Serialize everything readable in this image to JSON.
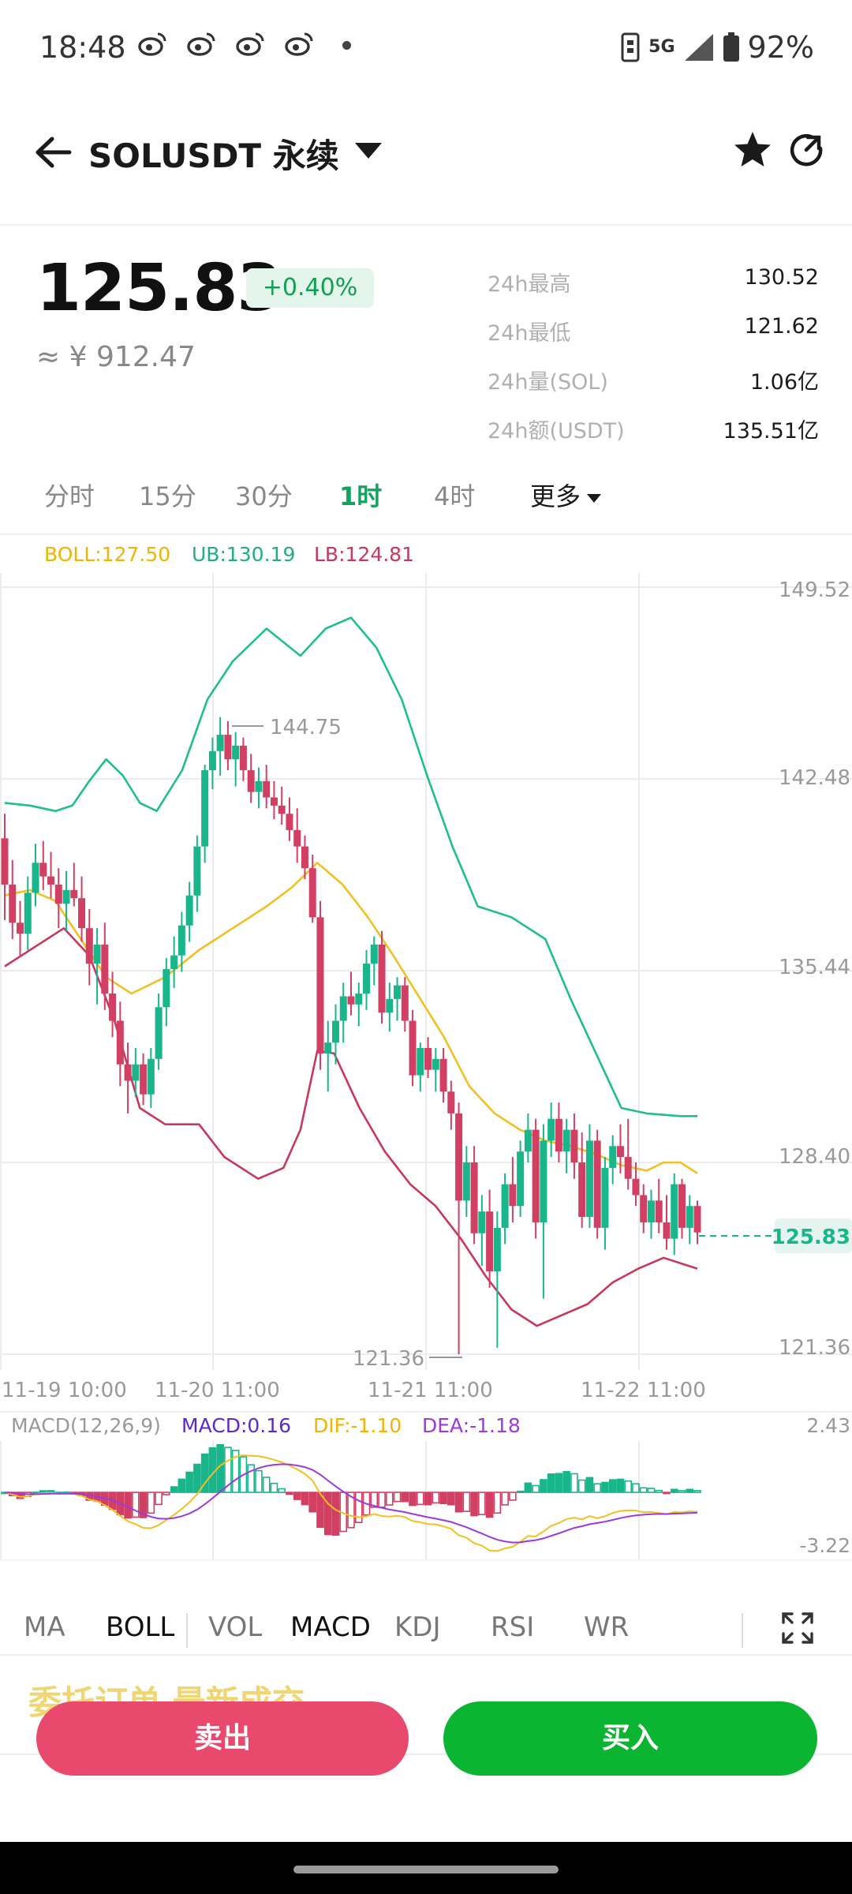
{
  "status_bar": {
    "time": "18:48",
    "network": "5G",
    "battery": "92%"
  },
  "nav": {
    "title": "SOLUSDT 永续"
  },
  "ticker": {
    "price": "125.83",
    "change": "+0.40%",
    "cny": "≈ ¥ 912.47",
    "stats": [
      {
        "label": "24h最高",
        "value": "130.52"
      },
      {
        "label": "24h最低",
        "value": "121.62"
      },
      {
        "label": "24h量(SOL)",
        "value": "1.06亿"
      },
      {
        "label": "24h额(USDT)",
        "value": "135.51亿"
      }
    ]
  },
  "timeframes": [
    "分时",
    "15分",
    "30分",
    "1时",
    "4时",
    "更多"
  ],
  "active_timeframe": "1时",
  "boll": {
    "boll": "BOLL:127.50",
    "ub": "UB:130.19",
    "lb": "LB:124.81"
  },
  "colors": {
    "up": "#19b58b",
    "down": "#d13f63",
    "boll": "#f2c022",
    "ub": "#1fbf8c",
    "lb": "#c8375e",
    "dif": "#f2c022",
    "dea": "#9b3bdc",
    "macd_label": "#5a2ad0"
  },
  "chart_data": {
    "type": "candlestick",
    "y_axis_labels": [
      "149.52",
      "142.48",
      "135.44",
      "128.40",
      "121.36"
    ],
    "ylim": [
      121.36,
      149.52
    ],
    "x_axis_labels": [
      "11-19 10:00",
      "11-20 11:00",
      "11-21 11:00",
      "11-22 11:00"
    ],
    "high_annotation": "144.75",
    "low_annotation": "121.36",
    "current_price_label": "125.83",
    "candles": [
      [
        140.3,
        141.2,
        137.3,
        138.6
      ],
      [
        138.6,
        139.5,
        136.6,
        137.2
      ],
      [
        137.2,
        138.0,
        136.0,
        136.8
      ],
      [
        136.8,
        138.9,
        136.2,
        138.3
      ],
      [
        138.3,
        140.1,
        137.8,
        139.4
      ],
      [
        139.4,
        140.2,
        138.4,
        138.9
      ],
      [
        138.9,
        139.8,
        138.1,
        138.6
      ],
      [
        138.6,
        139.2,
        137.0,
        137.9
      ],
      [
        137.9,
        139.1,
        136.9,
        138.4
      ],
      [
        138.4,
        139.4,
        137.8,
        138.1
      ],
      [
        138.1,
        138.9,
        136.5,
        137.0
      ],
      [
        137.0,
        137.7,
        134.9,
        135.7
      ],
      [
        135.7,
        137.0,
        134.2,
        136.4
      ],
      [
        136.4,
        137.2,
        134.0,
        134.6
      ],
      [
        134.6,
        135.4,
        133.0,
        133.6
      ],
      [
        133.6,
        134.3,
        131.2,
        132.0
      ],
      [
        132.0,
        132.8,
        130.2,
        131.4
      ],
      [
        131.4,
        132.6,
        130.8,
        132.0
      ],
      [
        132.0,
        132.4,
        130.5,
        130.9
      ],
      [
        130.9,
        132.6,
        130.4,
        132.2
      ],
      [
        132.2,
        134.6,
        131.8,
        134.1
      ],
      [
        134.1,
        135.9,
        133.4,
        135.5
      ],
      [
        135.5,
        136.7,
        134.8,
        136.0
      ],
      [
        136.0,
        137.6,
        135.4,
        137.1
      ],
      [
        137.1,
        138.7,
        136.5,
        138.2
      ],
      [
        138.2,
        140.4,
        137.6,
        140.0
      ],
      [
        140.0,
        143.0,
        139.4,
        142.8
      ],
      [
        142.8,
        144.0,
        142.1,
        143.5
      ],
      [
        143.5,
        144.75,
        142.6,
        144.1
      ],
      [
        144.1,
        144.6,
        142.8,
        143.2
      ],
      [
        143.2,
        144.2,
        142.2,
        143.7
      ],
      [
        143.7,
        144.0,
        142.4,
        142.8
      ],
      [
        142.8,
        143.4,
        141.6,
        142.0
      ],
      [
        142.0,
        142.9,
        141.4,
        142.4
      ],
      [
        142.4,
        143.0,
        141.4,
        141.8
      ],
      [
        141.8,
        142.4,
        141.0,
        141.5
      ],
      [
        141.5,
        142.2,
        140.8,
        141.2
      ],
      [
        141.2,
        141.8,
        140.2,
        140.6
      ],
      [
        140.6,
        141.4,
        139.4,
        140.0
      ],
      [
        140.0,
        140.4,
        138.8,
        139.2
      ],
      [
        139.2,
        139.7,
        137.2,
        137.4
      ],
      [
        137.4,
        138.0,
        131.8,
        132.4
      ],
      [
        132.4,
        133.6,
        131.0,
        132.8
      ],
      [
        132.8,
        134.2,
        132.0,
        133.6
      ],
      [
        133.6,
        135.0,
        132.8,
        134.5
      ],
      [
        134.5,
        135.4,
        133.8,
        134.2
      ],
      [
        134.2,
        135.0,
        133.4,
        134.6
      ],
      [
        134.6,
        136.2,
        134.0,
        135.7
      ],
      [
        135.7,
        136.7,
        134.9,
        136.4
      ],
      [
        136.4,
        136.9,
        133.5,
        133.9
      ],
      [
        133.9,
        135.0,
        133.2,
        134.4
      ],
      [
        134.4,
        135.2,
        133.6,
        134.9
      ],
      [
        134.9,
        135.2,
        133.2,
        133.6
      ],
      [
        133.6,
        134.0,
        131.2,
        131.6
      ],
      [
        131.6,
        132.8,
        131.0,
        132.6
      ],
      [
        132.6,
        133.0,
        131.5,
        131.8
      ],
      [
        131.8,
        132.6,
        131.0,
        132.2
      ],
      [
        132.2,
        132.6,
        130.6,
        131.0
      ],
      [
        131.0,
        131.4,
        129.6,
        130.2
      ],
      [
        130.2,
        130.6,
        121.36,
        127.0
      ],
      [
        127.0,
        129.0,
        126.4,
        128.4
      ],
      [
        128.4,
        129.0,
        125.4,
        125.8
      ],
      [
        125.8,
        127.2,
        124.6,
        126.6
      ],
      [
        126.6,
        127.4,
        123.8,
        124.4
      ],
      [
        124.4,
        126.6,
        121.6,
        126.0
      ],
      [
        126.0,
        128.0,
        125.4,
        127.6
      ],
      [
        127.6,
        128.6,
        126.2,
        126.8
      ],
      [
        126.8,
        129.2,
        126.4,
        128.8
      ],
      [
        128.8,
        130.2,
        128.4,
        129.6
      ],
      [
        129.6,
        130.0,
        125.6,
        126.2
      ],
      [
        126.2,
        129.8,
        123.4,
        129.2
      ],
      [
        129.2,
        130.6,
        128.6,
        130.0
      ],
      [
        130.0,
        130.6,
        128.4,
        128.8
      ],
      [
        128.8,
        130.0,
        128.0,
        129.6
      ],
      [
        129.6,
        130.2,
        127.8,
        128.4
      ],
      [
        128.4,
        129.5,
        126.0,
        126.4
      ],
      [
        126.4,
        129.8,
        126.0,
        129.2
      ],
      [
        129.2,
        129.6,
        125.6,
        126.0
      ],
      [
        126.0,
        128.6,
        125.2,
        128.2
      ],
      [
        128.2,
        129.4,
        127.6,
        129.0
      ],
      [
        129.0,
        129.8,
        128.0,
        128.6
      ],
      [
        128.6,
        130.0,
        127.4,
        127.8
      ],
      [
        127.8,
        128.4,
        126.8,
        127.2
      ],
      [
        127.2,
        127.6,
        125.8,
        126.2
      ],
      [
        126.2,
        127.4,
        125.6,
        127.0
      ],
      [
        127.0,
        127.8,
        125.8,
        126.2
      ],
      [
        126.2,
        127.2,
        125.2,
        125.6
      ],
      [
        125.6,
        128.0,
        125.0,
        127.6
      ],
      [
        127.6,
        127.8,
        125.6,
        126.0
      ],
      [
        126.0,
        127.2,
        125.4,
        126.8
      ],
      [
        126.8,
        127.0,
        125.4,
        125.83
      ]
    ],
    "mid": [
      [
        0,
        138.2
      ],
      [
        0.3,
        138.4
      ],
      [
        0.6,
        138.0
      ],
      [
        0.9,
        136.6
      ],
      [
        1.2,
        135.2
      ],
      [
        1.5,
        134.6
      ],
      [
        1.9,
        135.2
      ],
      [
        2.3,
        136.2
      ],
      [
        2.7,
        137.0
      ],
      [
        3.1,
        137.8
      ],
      [
        3.4,
        138.5
      ],
      [
        3.7,
        139.4
      ],
      [
        4.0,
        138.6
      ],
      [
        4.3,
        137.4
      ],
      [
        4.6,
        136.0
      ],
      [
        4.9,
        134.5
      ],
      [
        5.2,
        133.0
      ],
      [
        5.5,
        131.2
      ],
      [
        5.8,
        130.2
      ],
      [
        6.1,
        129.6
      ],
      [
        6.4,
        129.2
      ],
      [
        6.7,
        129.0
      ],
      [
        7.0,
        128.7
      ],
      [
        7.3,
        128.3
      ],
      [
        7.6,
        128.1
      ],
      [
        7.8,
        128.4
      ],
      [
        8.0,
        128.4
      ],
      [
        8.2,
        128.0
      ]
    ],
    "upper": [
      [
        0,
        141.6
      ],
      [
        0.3,
        141.5
      ],
      [
        0.6,
        141.3
      ],
      [
        0.8,
        141.5
      ],
      [
        1.0,
        142.4
      ],
      [
        1.2,
        143.2
      ],
      [
        1.4,
        142.6
      ],
      [
        1.6,
        141.6
      ],
      [
        1.8,
        141.3
      ],
      [
        2.1,
        142.8
      ],
      [
        2.4,
        145.4
      ],
      [
        2.7,
        146.8
      ],
      [
        3.1,
        148.0
      ],
      [
        3.5,
        147.0
      ],
      [
        3.8,
        148.0
      ],
      [
        4.1,
        148.4
      ],
      [
        4.4,
        147.3
      ],
      [
        4.7,
        145.4
      ],
      [
        5.0,
        142.6
      ],
      [
        5.3,
        140.0
      ],
      [
        5.6,
        137.8
      ],
      [
        6.0,
        137.4
      ],
      [
        6.4,
        136.6
      ],
      [
        6.7,
        134.4
      ],
      [
        7.0,
        132.4
      ],
      [
        7.3,
        130.4
      ],
      [
        7.6,
        130.2
      ],
      [
        8.0,
        130.1
      ],
      [
        8.2,
        130.1
      ]
    ],
    "lower": [
      [
        0,
        135.6
      ],
      [
        0.3,
        136.2
      ],
      [
        0.7,
        137.0
      ],
      [
        1.0,
        136.0
      ],
      [
        1.3,
        133.6
      ],
      [
        1.6,
        130.4
      ],
      [
        1.9,
        129.8
      ],
      [
        2.3,
        129.8
      ],
      [
        2.6,
        128.6
      ],
      [
        3.0,
        127.8
      ],
      [
        3.3,
        128.2
      ],
      [
        3.5,
        129.6
      ],
      [
        3.7,
        132.5
      ],
      [
        3.9,
        132.4
      ],
      [
        4.2,
        130.4
      ],
      [
        4.5,
        128.8
      ],
      [
        4.8,
        127.6
      ],
      [
        5.1,
        126.8
      ],
      [
        5.4,
        125.6
      ],
      [
        5.7,
        124.2
      ],
      [
        6.0,
        123.0
      ],
      [
        6.3,
        122.4
      ],
      [
        6.6,
        122.8
      ],
      [
        6.9,
        123.2
      ],
      [
        7.2,
        124.0
      ],
      [
        7.5,
        124.5
      ],
      [
        7.8,
        124.9
      ],
      [
        8.2,
        124.5
      ]
    ],
    "macd": {
      "params": "MACD(12,26,9)",
      "macd_label": "MACD:0.16",
      "dif_label": "DIF:-1.10",
      "dea_label": "DEA:-1.18",
      "y_max_label": "2.43",
      "y_min_label": "-3.22",
      "ylim": [
        -3.22,
        2.43
      ]
    }
  },
  "indicator_tabs": [
    "MA",
    "BOLL",
    "VOL",
    "MACD",
    "KDJ",
    "RSI",
    "WR"
  ],
  "active_indicator_tabs": [
    "BOLL",
    "MACD"
  ],
  "bottom_tabs_partial": "委托订单   最新成交",
  "actions": {
    "sell": "卖出",
    "buy": "买入"
  }
}
